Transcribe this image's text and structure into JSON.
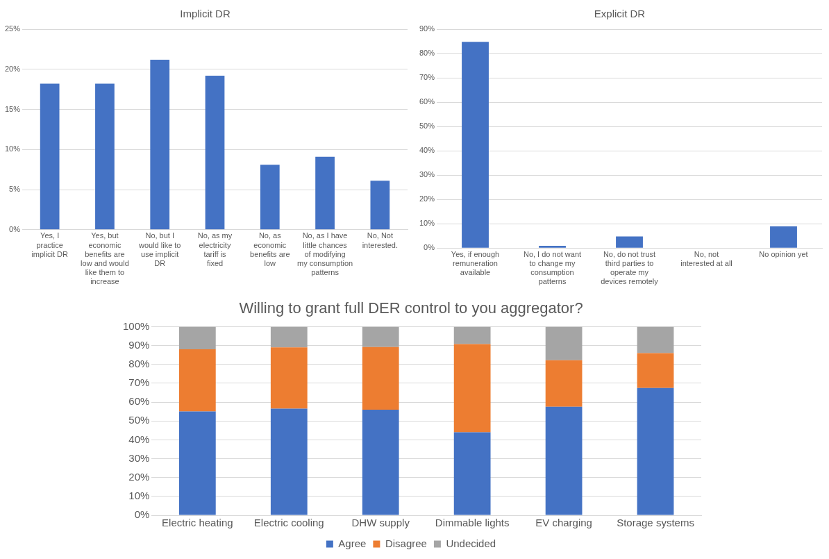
{
  "chart_data": [
    {
      "type": "bar",
      "title": "Implicit DR",
      "categories": [
        "Yes, I practice implicit DR",
        "Yes, but economic benefits are low and would like them to increase",
        "No, but I would like to use implicit DR",
        "No, as my electricity tariff is fixed",
        "No, as economic benefits are low",
        "No, as I have little chances of modifying my consumption patterns",
        "No, Not interested."
      ],
      "values": [
        18.2,
        18.2,
        21.2,
        19.2,
        8.1,
        9.1,
        6.1
      ],
      "color": "#4472c4",
      "ylim": [
        0,
        25
      ],
      "yticks": [
        {
          "value": 0,
          "label": "0%"
        },
        {
          "value": 5,
          "label": "5%"
        },
        {
          "value": 10,
          "label": "10%"
        },
        {
          "value": 15,
          "label": "15%"
        },
        {
          "value": 20,
          "label": "20%"
        },
        {
          "value": 25,
          "label": "25%"
        }
      ],
      "grid": "y",
      "legend": false
    },
    {
      "type": "bar",
      "title": "Explicit DR",
      "categories": [
        "Yes, if enough remuneration available",
        "No, I do not want to change my consumption patterns",
        "No, do not trust third parties to operate my devices remotely",
        "No, not interested at all",
        "No opinion yet"
      ],
      "values": [
        84.8,
        0.9,
        4.8,
        0,
        8.9
      ],
      "color": "#4472c4",
      "ylim": [
        0,
        90
      ],
      "yticks": [
        {
          "value": 0,
          "label": "0%"
        },
        {
          "value": 10,
          "label": "10%"
        },
        {
          "value": 20,
          "label": "20%"
        },
        {
          "value": 30,
          "label": "30%"
        },
        {
          "value": 40,
          "label": "40%"
        },
        {
          "value": 50,
          "label": "50%"
        },
        {
          "value": 60,
          "label": "60%"
        },
        {
          "value": 70,
          "label": "70%"
        },
        {
          "value": 80,
          "label": "80%"
        },
        {
          "value": 90,
          "label": "90%"
        }
      ],
      "grid": "y",
      "legend": false
    },
    {
      "type": "bar",
      "title": "Willing to grant full DER control to you aggregator?",
      "categories": [
        "Electric heating",
        "Electric cooling",
        "DHW supply",
        "Dimmable lights",
        "EV charging",
        "Storage systems"
      ],
      "stacked": true,
      "series": [
        {
          "name": "Agree",
          "color": "#4472c4",
          "values": [
            55,
            56.5,
            56,
            44,
            57.5,
            67.5
          ]
        },
        {
          "name": "Disagree",
          "color": "#ed7d31",
          "values": [
            33,
            32.5,
            33.2,
            46.8,
            24.7,
            18.5
          ]
        },
        {
          "name": "Undecided",
          "color": "#a5a5a5",
          "values": [
            12,
            11,
            10.8,
            9.2,
            17.8,
            14
          ]
        }
      ],
      "ylim": [
        0,
        100
      ],
      "yticks": [
        {
          "value": 0,
          "label": "0%"
        },
        {
          "value": 10,
          "label": "10%"
        },
        {
          "value": 20,
          "label": "20%"
        },
        {
          "value": 30,
          "label": "30%"
        },
        {
          "value": 40,
          "label": "40%"
        },
        {
          "value": 50,
          "label": "50%"
        },
        {
          "value": 60,
          "label": "60%"
        },
        {
          "value": 70,
          "label": "70%"
        },
        {
          "value": 80,
          "label": "80%"
        },
        {
          "value": 90,
          "label": "90%"
        },
        {
          "value": 100,
          "label": "100%"
        }
      ],
      "grid": "y",
      "legend": "bottom"
    }
  ]
}
